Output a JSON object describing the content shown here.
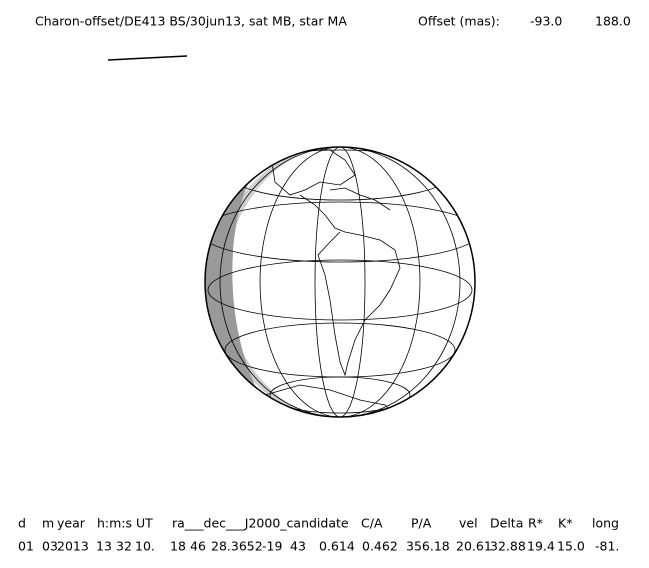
{
  "header": {
    "title": "Charon-offset/DE413 BS/30jun13, sat MB, star MA",
    "offset_label": "Offset (mas):",
    "offset_x": "-93.0",
    "offset_y": "188.0"
  },
  "table": {
    "columns": [
      "d",
      "m",
      "year",
      "h:m:s UT",
      "ra___dec___J2000_candidate",
      "C/A",
      "P/A",
      "vel",
      "Delta",
      "R*",
      "K*",
      "long"
    ],
    "rows": [
      [
        "01",
        "03",
        "2013",
        "13",
        "32",
        "10.",
        "18",
        "46",
        "28.3652",
        "-19",
        "43",
        "0.614",
        "0.462",
        "356.18",
        "20.61",
        "32.88",
        "19.4",
        "15.0",
        "-81."
      ]
    ]
  }
}
